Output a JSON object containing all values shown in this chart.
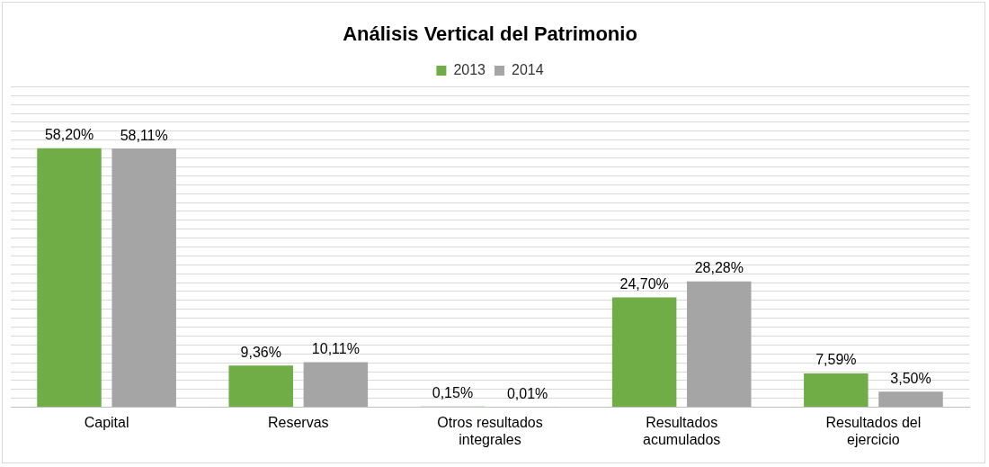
{
  "chart_data": {
    "type": "bar",
    "title": "Análisis Vertical del Patrimonio",
    "categories": [
      "Capital",
      "Reservas",
      "Otros resultados integrales",
      "Resultados acumulados",
      "Resultados del ejercicio"
    ],
    "series": [
      {
        "name": "2013",
        "color": "#70ad47",
        "values": [
          58.2,
          9.36,
          0.15,
          24.7,
          7.59
        ],
        "value_labels": [
          "58,20%",
          "9,36%",
          "0,15%",
          "24,70%",
          "7,59%"
        ]
      },
      {
        "name": "2014",
        "color": "#a5a5a5",
        "values": [
          58.11,
          10.11,
          0.01,
          28.28,
          3.5
        ],
        "value_labels": [
          "58,11%",
          "10,11%",
          "0,01%",
          "28,28%",
          "3,50%"
        ]
      }
    ],
    "ylim": [
      0,
      72
    ],
    "yticks": [
      {
        "value": 0,
        "label": null
      },
      {
        "value": 2,
        "label": null
      },
      {
        "value": 4,
        "label": null
      },
      {
        "value": 6,
        "label": null
      },
      {
        "value": 8,
        "label": null
      },
      {
        "value": 10,
        "label": null
      },
      {
        "value": 12,
        "label": null
      },
      {
        "value": 14,
        "label": null
      },
      {
        "value": 16,
        "label": null
      },
      {
        "value": 18,
        "label": null
      },
      {
        "value": 20,
        "label": null
      },
      {
        "value": 22,
        "label": null
      },
      {
        "value": 24,
        "label": null
      },
      {
        "value": 26,
        "label": null
      },
      {
        "value": 28,
        "label": null
      },
      {
        "value": 30,
        "label": null
      },
      {
        "value": 32,
        "label": null
      },
      {
        "value": 34,
        "label": null
      },
      {
        "value": 36,
        "label": null
      },
      {
        "value": 38,
        "label": null
      },
      {
        "value": 40,
        "label": null
      },
      {
        "value": 42,
        "label": null
      },
      {
        "value": 44,
        "label": null
      },
      {
        "value": 46,
        "label": null
      },
      {
        "value": 48,
        "label": null
      },
      {
        "value": 50,
        "label": null
      },
      {
        "value": 52,
        "label": null
      },
      {
        "value": 54,
        "label": null
      },
      {
        "value": 56,
        "label": null
      },
      {
        "value": 58,
        "label": null
      },
      {
        "value": 60,
        "label": null
      },
      {
        "value": 62,
        "label": null
      },
      {
        "value": 64,
        "label": null
      },
      {
        "value": 66,
        "label": null
      },
      {
        "value": 68,
        "label": null
      },
      {
        "value": 70,
        "label": null
      },
      {
        "value": 72,
        "label": null
      }
    ],
    "tick_labels": "x",
    "grid": "y",
    "legend": "top"
  }
}
